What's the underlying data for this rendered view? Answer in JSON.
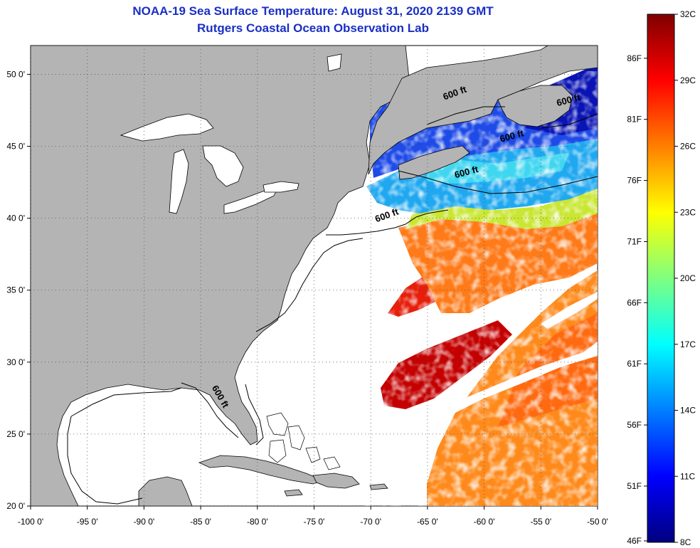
{
  "title": {
    "line1": "NOAA-19 Sea Surface Temperature:  August 31, 2020 2139 GMT",
    "line2": "Rutgers Coastal Ocean Observation Lab"
  },
  "map": {
    "lon_range": [
      -100,
      -50
    ],
    "lat_range": [
      20,
      52
    ],
    "lon_ticks": [
      {
        "value": -100,
        "label": "-100 0'"
      },
      {
        "value": -95,
        "label": "-95 0'"
      },
      {
        "value": -90,
        "label": "-90 0'"
      },
      {
        "value": -85,
        "label": "-85 0'"
      },
      {
        "value": -80,
        "label": "-80 0'"
      },
      {
        "value": -75,
        "label": "-75 0'"
      },
      {
        "value": -70,
        "label": "-70 0'"
      },
      {
        "value": -65,
        "label": "-65 0'"
      },
      {
        "value": -60,
        "label": "-60 0'"
      },
      {
        "value": -55,
        "label": "-55 0'"
      },
      {
        "value": -50,
        "label": "-50 0'"
      }
    ],
    "lat_ticks": [
      {
        "value": 50,
        "label": "50 0'"
      },
      {
        "value": 45,
        "label": "45 0'"
      },
      {
        "value": 40,
        "label": "40 0'"
      },
      {
        "value": 35,
        "label": "35 0'"
      },
      {
        "value": 30,
        "label": "30 0'"
      },
      {
        "value": 25,
        "label": "25 0'"
      },
      {
        "value": 20,
        "label": "20 0'"
      }
    ],
    "contour_labels": [
      {
        "text": "600 ft",
        "lon": -68.5,
        "lat": 40.0,
        "rotate": -20
      },
      {
        "text": "600 ft",
        "lon": -83.5,
        "lat": 27.5,
        "rotate": 60
      },
      {
        "text": "600 ft",
        "lon": -61.5,
        "lat": 43.0,
        "rotate": -15
      },
      {
        "text": "600 ft",
        "lon": -62.5,
        "lat": 48.5,
        "rotate": -20
      },
      {
        "text": "600 ft",
        "lon": -57.5,
        "lat": 45.5,
        "rotate": -15
      },
      {
        "text": "600 ft",
        "lon": -52.5,
        "lat": 48.0,
        "rotate": -15
      }
    ],
    "colors": {
      "land": "#b4b4b4",
      "ocean_nodata": "#ffffff",
      "coast": "#000000",
      "grid": "#555555"
    }
  },
  "colorbar": {
    "celsius_labels": [
      {
        "value": 32,
        "label": "32C"
      },
      {
        "value": 29,
        "label": "29C"
      },
      {
        "value": 26,
        "label": "26C"
      },
      {
        "value": 23,
        "label": "23C"
      },
      {
        "value": 20,
        "label": "20C"
      },
      {
        "value": 17,
        "label": "17C"
      },
      {
        "value": 14,
        "label": "14C"
      },
      {
        "value": 11,
        "label": "11C"
      },
      {
        "value": 8,
        "label": "8C"
      }
    ],
    "fahrenheit_labels": [
      {
        "value": 86,
        "label": "86F"
      },
      {
        "value": 81,
        "label": "81F"
      },
      {
        "value": 76,
        "label": "76F"
      },
      {
        "value": 71,
        "label": "71F"
      },
      {
        "value": 66,
        "label": "66F"
      },
      {
        "value": 61,
        "label": "61F"
      },
      {
        "value": 56,
        "label": "56F"
      },
      {
        "value": 51,
        "label": "51F"
      },
      {
        "value": 46,
        "label": "46F"
      }
    ],
    "range_c": [
      8,
      32
    ],
    "range_f": [
      46.4,
      89.6
    ],
    "stops": [
      "#00007f",
      "#0000ff",
      "#007fff",
      "#00ffff",
      "#7fff7f",
      "#ffff00",
      "#ff7f00",
      "#ff0000",
      "#7f0000"
    ]
  }
}
